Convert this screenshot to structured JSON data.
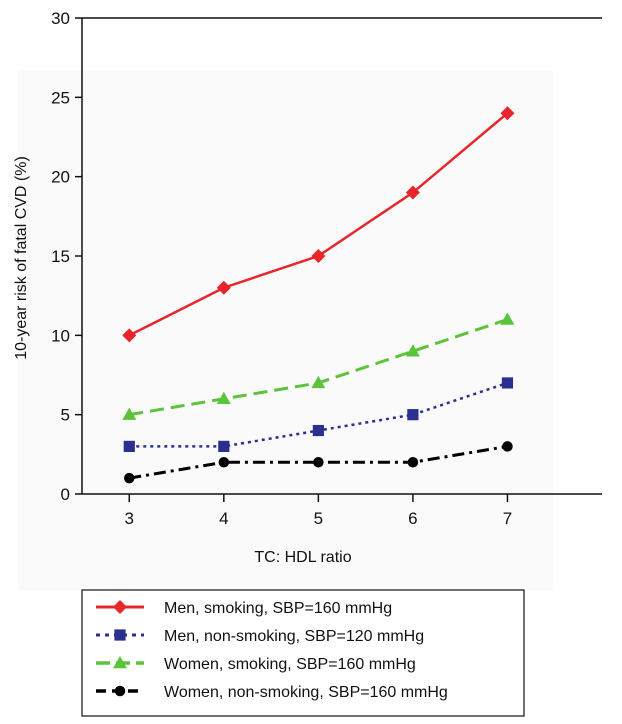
{
  "chart_data": {
    "type": "line",
    "xlabel": "TC: HDL ratio",
    "ylabel": "10-year risk of fatal CVD (%)",
    "x": [
      3,
      4,
      5,
      6,
      7
    ],
    "xlim": [
      2.5,
      8
    ],
    "ylim": [
      0,
      30
    ],
    "yticks": [
      0,
      5,
      10,
      15,
      20,
      25,
      30
    ],
    "xticks": [
      3,
      4,
      5,
      6,
      7
    ],
    "grid": false,
    "legend_position": "bottom",
    "series": [
      {
        "name": "Men, smoking, SBP=160 mmHg",
        "values": [
          10,
          13,
          15,
          19,
          24
        ],
        "color": "#e8252a",
        "marker": "diamond",
        "dash": "solid"
      },
      {
        "name": "Men, non-smoking, SBP=120 mmHg",
        "values": [
          3,
          3,
          4,
          5,
          7
        ],
        "color": "#2b2f8f",
        "marker": "square",
        "dash": "dotted"
      },
      {
        "name": "Women, smoking, SBP=160 mmHg",
        "values": [
          5,
          6,
          7,
          9,
          11
        ],
        "color": "#5cc43a",
        "marker": "triangle",
        "dash": "dashed"
      },
      {
        "name": "Women, non-smoking, SBP=160 mmHg",
        "values": [
          1,
          2,
          2,
          2,
          3
        ],
        "color": "#000000",
        "marker": "circle",
        "dash": "dashdot"
      }
    ]
  }
}
